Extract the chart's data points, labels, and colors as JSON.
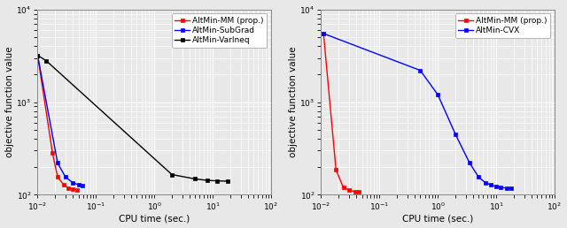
{
  "plot1": {
    "xlabel": "CPU time (sec.)",
    "ylabel": "objective function value",
    "xlim": [
      0.01,
      100
    ],
    "ylim": [
      100,
      10000
    ],
    "series": [
      {
        "label": "AltMin-MM (prop.)",
        "color": "#ff0000",
        "marker": "s",
        "markersize": 3.5,
        "x": [
          0.01,
          0.018,
          0.022,
          0.028,
          0.034,
          0.04,
          0.048
        ],
        "y": [
          3200,
          280,
          155,
          128,
          118,
          115,
          113
        ]
      },
      {
        "label": "AltMin-SubGrad",
        "color": "#0000ff",
        "marker": "s",
        "markersize": 3.5,
        "x": [
          0.01,
          0.022,
          0.03,
          0.04,
          0.05,
          0.058
        ],
        "y": [
          3200,
          220,
          155,
          135,
          128,
          125
        ]
      },
      {
        "label": "AltMin-VarIneq",
        "color": "#000000",
        "marker": "s",
        "markersize": 3.5,
        "x": [
          0.01,
          0.014,
          2.0,
          5.0,
          8.0,
          12.0,
          18.0
        ],
        "y": [
          3200,
          2800,
          165,
          148,
          143,
          141,
          140
        ]
      }
    ]
  },
  "plot2": {
    "xlabel": "CPU time (sec.)",
    "ylabel": "objective function value",
    "xlim": [
      0.01,
      100
    ],
    "ylim": [
      100,
      10000
    ],
    "series": [
      {
        "label": "AltMin-MM (prop.)",
        "color": "#ff0000",
        "marker": "s",
        "markersize": 3.5,
        "x": [
          0.011,
          0.018,
          0.024,
          0.03,
          0.038,
          0.045
        ],
        "y": [
          5500,
          185,
          120,
          112,
          108,
          107
        ]
      },
      {
        "label": "AltMin-CVX",
        "color": "#0000ff",
        "marker": "s",
        "markersize": 3.5,
        "x": [
          0.011,
          0.5,
          1.0,
          2.0,
          3.5,
          5.0,
          6.5,
          8.0,
          10.0,
          12.0,
          15.0,
          18.0
        ],
        "y": [
          5500,
          2200,
          1200,
          450,
          220,
          155,
          135,
          128,
          122,
          120,
          118,
          117
        ]
      }
    ]
  },
  "background_color": "#e8e8e8",
  "grid_color": "#ffffff",
  "marker_size": 3.5,
  "linewidth": 1.0,
  "legend_fontsize": 6.5,
  "tick_fontsize": 6.5,
  "label_fontsize": 7.5,
  "spine_color": "#888888"
}
